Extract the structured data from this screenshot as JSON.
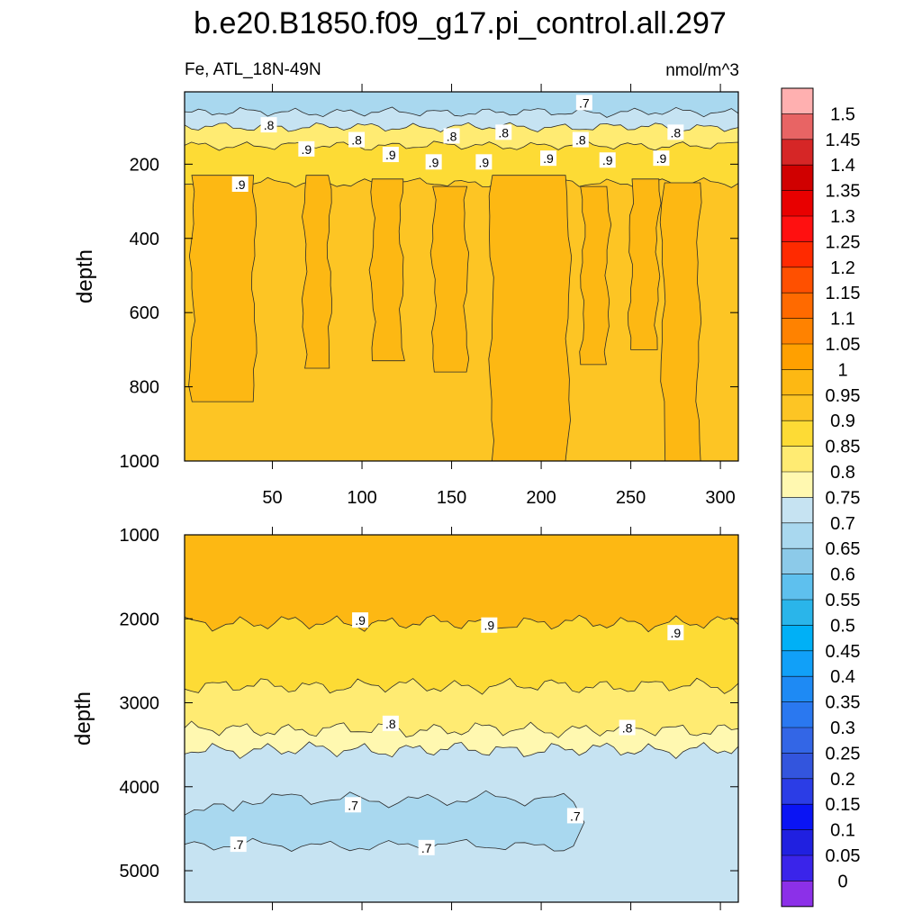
{
  "chart_data": [
    {
      "type": "heatmap",
      "panel": "upper",
      "title": "b.e20.B1850.f09_g17.pi_control.all.297",
      "left_label": "Fe, ATL_18N-49N",
      "right_label": "nmol/m^3",
      "xlabel": "",
      "ylabel": "depth",
      "xlim": [
        1,
        310
      ],
      "ylim": [
        1000,
        5
      ],
      "x_ticks": [
        50,
        100,
        150,
        200,
        250,
        300
      ],
      "y_ticks": [
        200,
        400,
        600,
        800,
        1000
      ],
      "bands_depth_fe": [
        {
          "depth": 5,
          "fe": 0.68
        },
        {
          "depth": 60,
          "fe": 0.73
        },
        {
          "depth": 100,
          "fe": 0.8
        },
        {
          "depth": 150,
          "fe": 0.86
        },
        {
          "depth": 250,
          "fe": 0.91
        }
      ],
      "patches_fe_095": [
        {
          "x_from": 5,
          "x_to": 40,
          "depth_from": 230,
          "depth_to": 840
        },
        {
          "x_from": 68,
          "x_to": 82,
          "depth_from": 230,
          "depth_to": 750
        },
        {
          "x_from": 106,
          "x_to": 122,
          "depth_from": 240,
          "depth_to": 730
        },
        {
          "x_from": 140,
          "x_to": 158,
          "depth_from": 260,
          "depth_to": 760
        },
        {
          "x_from": 172,
          "x_to": 215,
          "depth_from": 230,
          "depth_to": 1000
        },
        {
          "x_from": 223,
          "x_to": 237,
          "depth_from": 260,
          "depth_to": 740
        },
        {
          "x_from": 250,
          "x_to": 265,
          "depth_from": 240,
          "depth_to": 700
        },
        {
          "x_from": 268,
          "x_to": 288,
          "depth_from": 250,
          "depth_to": 1000
        }
      ],
      "contour_labels": [
        {
          "text": ".8",
          "x": 48,
          "depth": 95
        },
        {
          "text": ".9",
          "x": 69,
          "depth": 160
        },
        {
          "text": ".8",
          "x": 97,
          "depth": 135
        },
        {
          "text": ".9",
          "x": 116,
          "depth": 175
        },
        {
          "text": ".8",
          "x": 150,
          "depth": 125
        },
        {
          "text": ".9",
          "x": 140,
          "depth": 195
        },
        {
          "text": ".9",
          "x": 168,
          "depth": 195
        },
        {
          "text": ".8",
          "x": 179,
          "depth": 115
        },
        {
          "text": ".7",
          "x": 224,
          "depth": 35
        },
        {
          "text": ".8",
          "x": 222,
          "depth": 135
        },
        {
          "text": ".9",
          "x": 204,
          "depth": 185
        },
        {
          "text": ".9",
          "x": 237,
          "depth": 190
        },
        {
          "text": ".8",
          "x": 275,
          "depth": 115
        },
        {
          "text": ".9",
          "x": 267,
          "depth": 185
        },
        {
          "text": ".9",
          "x": 32,
          "depth": 255
        }
      ]
    },
    {
      "type": "heatmap",
      "panel": "lower",
      "xlabel": "",
      "ylabel": "depth",
      "xlim": [
        1,
        310
      ],
      "ylim": [
        5375,
        1000
      ],
      "y_ticks": [
        1000,
        2000,
        3000,
        4000,
        5000
      ],
      "bands_depth_fe": [
        {
          "depth": 1000,
          "fe": 0.95
        },
        {
          "depth": 2050,
          "fe": 0.88
        },
        {
          "depth": 2800,
          "fe": 0.82
        },
        {
          "depth": 3320,
          "fe": 0.77
        },
        {
          "depth": 3560,
          "fe": 0.72
        }
      ],
      "patch_fe_065": {
        "depth_top": 4150,
        "depth_bottom": 4700,
        "x_from": 1,
        "x_to": 218
      },
      "contour_labels": [
        {
          "text": ".9",
          "x": 99,
          "depth": 2020
        },
        {
          "text": ".9",
          "x": 171,
          "depth": 2080
        },
        {
          "text": ".9",
          "x": 275,
          "depth": 2170
        },
        {
          "text": ".8",
          "x": 116,
          "depth": 3250
        },
        {
          "text": ".8",
          "x": 248,
          "depth": 3300
        },
        {
          "text": ".7",
          "x": 95,
          "depth": 4220
        },
        {
          "text": ".7",
          "x": 31,
          "depth": 4690
        },
        {
          "text": ".7",
          "x": 136,
          "depth": 4730
        },
        {
          "text": ".7",
          "x": 219,
          "depth": 4350
        }
      ]
    }
  ],
  "colorbar": {
    "levels": [
      "1.5",
      "1.45",
      "1.4",
      "1.35",
      "1.3",
      "1.25",
      "1.2",
      "1.15",
      "1.1",
      "1.05",
      "1",
      "0.95",
      "0.9",
      "0.85",
      "0.8",
      "0.75",
      "0.7",
      "0.65",
      "0.6",
      "0.55",
      "0.5",
      "0.45",
      "0.4",
      "0.35",
      "0.3",
      "0.25",
      "0.2",
      "0.15",
      "0.1",
      "0.05",
      "0"
    ],
    "colors": [
      "#ffb0b0",
      "#e86464",
      "#d62626",
      "#d00000",
      "#e80000",
      "#ff1010",
      "#ff2a00",
      "#ff5000",
      "#ff6a00",
      "#ff8200",
      "#ffa000",
      "#fdb813",
      "#fdc524",
      "#fddb35",
      "#ffeb72",
      "#fff8b0",
      "#c6e3f2",
      "#a9d8ef",
      "#8ccae9",
      "#5ec0ee",
      "#2ab5ea",
      "#00b0f6",
      "#11a0f8",
      "#1e8af4",
      "#2a78f0",
      "#3366e6",
      "#3355dd",
      "#2b3de6",
      "#0a14f4",
      "#2020e0",
      "#3a24ea",
      "#8c30e8"
    ]
  },
  "colors": {
    "contour": "#2b2b2b",
    "label_bg": "#ffffff"
  }
}
